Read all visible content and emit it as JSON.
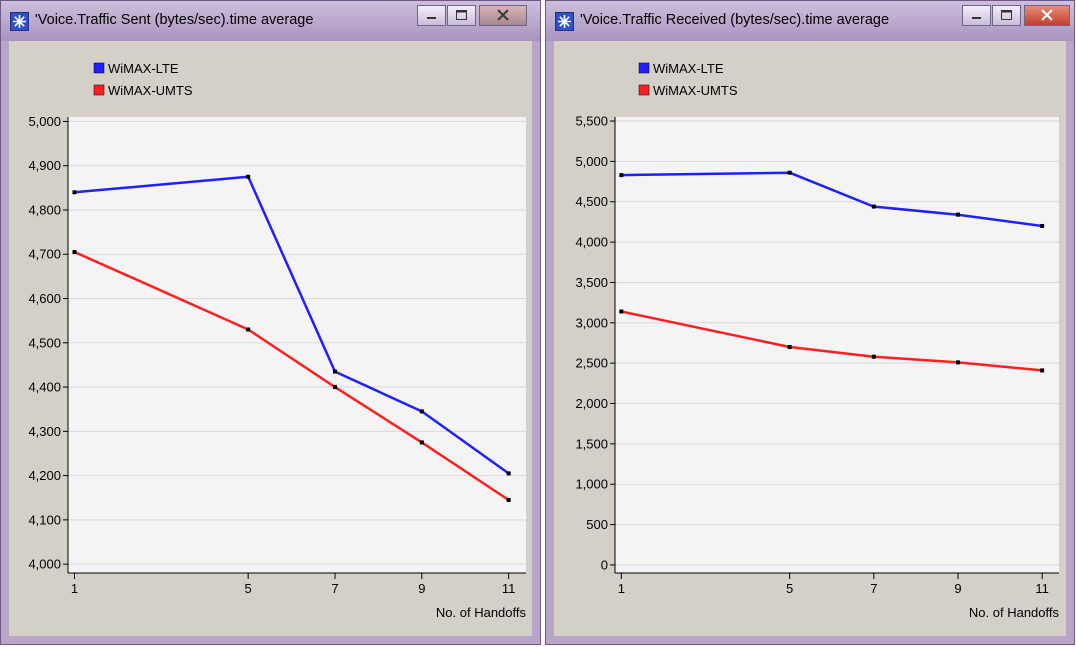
{
  "windows": [
    {
      "title": "'Voice.Traffic Sent (bytes/sec).time average",
      "buttons": [
        "minimize",
        "maximize",
        "close"
      ]
    },
    {
      "title": "'Voice.Traffic Received (bytes/sec).time average",
      "buttons": [
        "minimize",
        "maximize",
        "close"
      ]
    }
  ],
  "colors": {
    "window_frame": "#b9a5c8",
    "plot_background": "#f4f4f4",
    "panel_background": "#d4d0c8",
    "gridline": "#d9d9d9"
  },
  "chart_data": [
    {
      "type": "line",
      "title": "'Voice.Traffic Sent (bytes/sec).time average",
      "xlabel": "No. of Handoffs",
      "ylabel": "",
      "x": [
        1,
        5,
        7,
        9,
        11
      ],
      "x_tick_labels": [
        "1",
        "5",
        "7",
        "9",
        "11"
      ],
      "y_tick_values": [
        4000,
        4100,
        4200,
        4300,
        4400,
        4500,
        4600,
        4700,
        4800,
        4900,
        5000
      ],
      "y_tick_labels": [
        "4,000",
        "4,100",
        "4,200",
        "4,300",
        "4,400",
        "4,500",
        "4,600",
        "4,700",
        "4,800",
        "4,900",
        "5,000"
      ],
      "ylim": [
        3980,
        5010
      ],
      "grid": true,
      "legend_position": "top-left",
      "series": [
        {
          "name": "WiMAX-LTE",
          "color": "#1f1fff",
          "values": [
            4840,
            4875,
            4435,
            4345,
            4205
          ]
        },
        {
          "name": "WiMAX-UMTS",
          "color": "#ff1f1f",
          "values": [
            4705,
            4530,
            4400,
            4275,
            4145
          ]
        }
      ]
    },
    {
      "type": "line",
      "title": "'Voice.Traffic Received (bytes/sec).time average",
      "xlabel": "No. of Handoffs",
      "ylabel": "",
      "x": [
        1,
        5,
        7,
        9,
        11
      ],
      "x_tick_labels": [
        "1",
        "5",
        "7",
        "9",
        "11"
      ],
      "y_tick_values": [
        0,
        500,
        1000,
        1500,
        2000,
        2500,
        3000,
        3500,
        4000,
        4500,
        5000,
        5500
      ],
      "y_tick_labels": [
        "0",
        "500",
        "1,000",
        "1,500",
        "2,000",
        "2,500",
        "3,000",
        "3,500",
        "4,000",
        "4,500",
        "5,000",
        "5,500"
      ],
      "ylim": [
        -100,
        5550
      ],
      "grid": true,
      "legend_position": "top-left",
      "series": [
        {
          "name": "WiMAX-LTE",
          "color": "#1f1fff",
          "values": [
            4830,
            4860,
            4440,
            4340,
            4200
          ]
        },
        {
          "name": "WiMAX-UMTS",
          "color": "#ff1f1f",
          "values": [
            3140,
            2700,
            2580,
            2510,
            2410
          ]
        }
      ]
    }
  ]
}
